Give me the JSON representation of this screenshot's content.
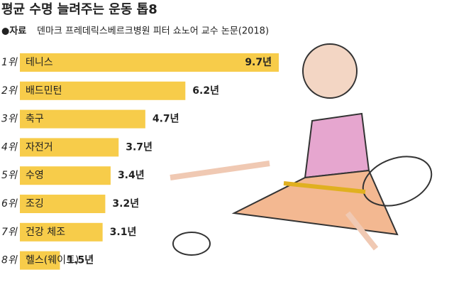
{
  "chart_data": {
    "type": "bar",
    "orientation": "horizontal",
    "title": "평균 수명 늘려주는 운동 톱8",
    "source_label": "●자료",
    "source": "덴마크 프레데릭스베르크병원 피터 쇼노어 교수 논문(2018)",
    "ranks": [
      "1위",
      "2위",
      "3위",
      "4위",
      "5위",
      "6위",
      "7위",
      "8위"
    ],
    "categories": [
      "테니스",
      "배드민턴",
      "축구",
      "자전거",
      "수영",
      "조깅",
      "건강 체조",
      "헬스(웨이트)"
    ],
    "values": [
      9.7,
      6.2,
      4.7,
      3.7,
      3.4,
      3.2,
      3.1,
      1.5
    ],
    "value_labels": [
      "9.7년",
      "6.2년",
      "4.7년",
      "3.7년",
      "3.4년",
      "3.2년",
      "3.1년",
      "1.5년"
    ],
    "color": "#f7cc4a"
  }
}
